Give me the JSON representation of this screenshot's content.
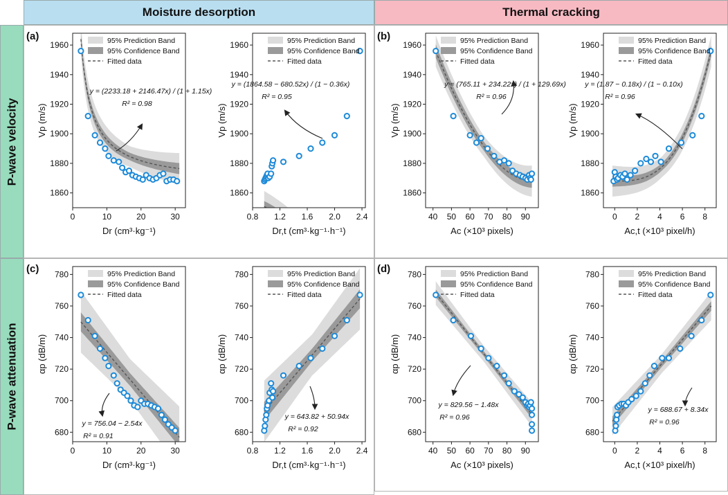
{
  "headers": {
    "col_left": "Moisture desorption",
    "col_right": "Thermal cracking",
    "row_top": "P-wave velocity",
    "row_bottom": "P-wave attenuation"
  },
  "colors": {
    "col_left_bg": "#b9def0",
    "col_right_bg": "#f7b9c2",
    "row_bg": "#98dcbd",
    "marker": "#1d8ad8",
    "prediction_band": "#dcdcdc",
    "confidence_band": "#9a9a9a",
    "fit_line": "#555555"
  },
  "legend": {
    "prediction": "95% Prediction Band",
    "confidence": "95% Confidence Band",
    "fitted": "Fitted data"
  },
  "panel_labels": [
    "(a)",
    "(b)",
    "(c)",
    "(d)"
  ],
  "chart_data": [
    {
      "id": "a1",
      "type": "scatter",
      "ylabel": "V_p (m/s)",
      "xlabel": "D_r (cm³·kg⁻¹)",
      "xlim": [
        0,
        33
      ],
      "ylim": [
        1850,
        1968
      ],
      "xticks": [
        0,
        10,
        20,
        30
      ],
      "yticks": [
        1860,
        1880,
        1900,
        1920,
        1940,
        1960
      ],
      "fit": "rational",
      "fit_params": [
        2233.18,
        2146.47,
        1.15
      ],
      "fit_range": [
        2.4,
        31.2
      ],
      "pred_half": 7,
      "conf_half": 2.5,
      "equation": [
        "y = (2233.18 + 2146.47x) / (1 + 1.15x)",
        "R² = 0.98"
      ],
      "x": [
        2.4,
        4.5,
        6.5,
        8,
        9.5,
        10.5,
        12,
        13.5,
        14.5,
        15.5,
        16.5,
        17.5,
        18.5,
        19.5,
        20.5,
        21.5,
        22.5,
        23.5,
        24.5,
        25.5,
        26.5,
        27.5,
        28.5,
        29.5,
        30.5
      ],
      "y": [
        1956,
        1912,
        1899,
        1894,
        1890,
        1885,
        1882,
        1881,
        1877,
        1874,
        1875,
        1872,
        1871,
        1870,
        1869,
        1872,
        1870,
        1869,
        1870,
        1872,
        1873,
        1868,
        1869,
        1869,
        1868
      ]
    },
    {
      "id": "a2",
      "type": "scatter",
      "ylabel": "V_p (m/s)",
      "xlabel": "D_r,t (cm³·kg⁻¹·h⁻¹)",
      "xlim": [
        0.8,
        2.45
      ],
      "ylim": [
        1850,
        1968
      ],
      "xticks": [
        0.8,
        1.2,
        1.6,
        2.0,
        2.4
      ],
      "yticks": [
        1860,
        1880,
        1900,
        1920,
        1940,
        1960
      ],
      "fit": "rational",
      "fit_params": [
        1864.58,
        -680.52,
        -0.36
      ],
      "fit_range": [
        0.97,
        2.37
      ],
      "pred_half": 7,
      "conf_half": 2.5,
      "equation": [
        "y = (1864.58 − 680.52x) / (1 − 0.36x)",
        "R² = 0.95"
      ],
      "x": [
        0.97,
        0.98,
        0.99,
        1.0,
        1.01,
        1.02,
        1.03,
        1.05,
        1.07,
        1.08,
        1.09,
        1.1,
        1.25,
        1.48,
        1.65,
        1.82,
        2.0,
        2.18,
        2.37
      ],
      "y": [
        1868,
        1869,
        1870,
        1871,
        1872,
        1873,
        1870,
        1871,
        1873,
        1878,
        1880,
        1882,
        1881,
        1885,
        1890,
        1894,
        1899,
        1912,
        1956
      ]
    },
    {
      "id": "b1",
      "type": "scatter",
      "ylabel": "V_p (m/s)",
      "xlabel": "A_c (×10³ pixels)",
      "xlim": [
        36,
        97
      ],
      "ylim": [
        1850,
        1968
      ],
      "xticks": [
        40,
        50,
        60,
        70,
        80,
        90
      ],
      "yticks": [
        1860,
        1880,
        1900,
        1920,
        1940,
        1960
      ],
      "fit": "rational",
      "fit_params": [
        765.11,
        234.22,
        129.69
      ],
      "fit_range": [
        41.5,
        93.5
      ],
      "pred_half": 7,
      "conf_half": 3,
      "equation": [
        "y = (765.11 + 234.22x) / (1 + 129.69x)",
        "R² = 0.96"
      ],
      "x": [
        41.5,
        51,
        60,
        63.5,
        66,
        69.5,
        73,
        76,
        78.5,
        81,
        83,
        85,
        87,
        88.5,
        90,
        91,
        92,
        92.5,
        93,
        93.5
      ],
      "y": [
        1956,
        1912,
        1899,
        1894,
        1897,
        1890,
        1885,
        1881,
        1882,
        1880,
        1875,
        1873,
        1872,
        1871,
        1870,
        1869,
        1872,
        1870,
        1869,
        1873
      ]
    },
    {
      "id": "b2",
      "type": "scatter",
      "ylabel": "V_p (m/s)",
      "xlabel": "A_c,t (×10³ pixel/h)",
      "xlim": [
        -1,
        9
      ],
      "ylim": [
        1850,
        1968
      ],
      "xticks": [
        0,
        2,
        4,
        6,
        8
      ],
      "yticks": [
        1860,
        1880,
        1900,
        1920,
        1940,
        1960
      ],
      "fit": "rational",
      "fit_params": [
        1.87,
        -0.18,
        -0.1
      ],
      "fit_range": [
        -0.2,
        8.55
      ],
      "pred_half": 7,
      "conf_half": 2.5,
      "equation": [
        "y = (1.87 − 0.18x) / (1 − 0.10x)",
        "R² = 0.96"
      ],
      "x": [
        -0.1,
        0.0,
        0.1,
        0.2,
        0.3,
        0.5,
        0.7,
        0.9,
        1.1,
        1.4,
        1.8,
        2.3,
        2.8,
        3.2,
        3.6,
        4.1,
        4.8,
        5.9,
        6.9,
        7.7,
        8.5
      ],
      "y": [
        1868,
        1874,
        1871,
        1869,
        1870,
        1872,
        1871,
        1873,
        1869,
        1872,
        1875,
        1880,
        1883,
        1881,
        1885,
        1881,
        1890,
        1894,
        1899,
        1912,
        1956
      ]
    },
    {
      "id": "c1",
      "type": "scatter",
      "ylabel": "α_p (dB/m)",
      "xlabel": "D_r (cm³·kg⁻¹)",
      "xlim": [
        0,
        33
      ],
      "ylim": [
        674,
        785
      ],
      "xticks": [
        0,
        10,
        20,
        30
      ],
      "yticks": [
        680,
        700,
        720,
        740,
        760,
        780
      ],
      "fit": "linear",
      "fit_params": [
        756.04,
        -2.54
      ],
      "fit_range": [
        2.4,
        31.2
      ],
      "pred_half": 13,
      "conf_half": 4,
      "equation": [
        "y = 756.04 − 2.54x",
        "R² = 0.91"
      ],
      "x": [
        2.4,
        4.5,
        6.5,
        8,
        9.5,
        10.5,
        12,
        13,
        14,
        15,
        16,
        17,
        18,
        19,
        20,
        21,
        22,
        23,
        24,
        25,
        26,
        27,
        28,
        29,
        30
      ],
      "y": [
        767,
        751,
        741,
        733,
        727,
        722,
        716,
        711,
        707,
        705,
        703,
        700,
        697,
        696,
        700,
        698,
        698,
        697,
        696,
        695,
        691,
        688,
        685,
        683,
        681
      ]
    },
    {
      "id": "c2",
      "type": "scatter",
      "ylabel": "α_p (dB/m)",
      "xlabel": "D_r,t (cm³·kg⁻¹·h⁻¹)",
      "xlim": [
        0.8,
        2.45
      ],
      "ylim": [
        674,
        785
      ],
      "xticks": [
        0.8,
        1.2,
        1.6,
        2.0,
        2.4
      ],
      "yticks": [
        680,
        700,
        720,
        740,
        760,
        780
      ],
      "fit": "linear",
      "fit_params": [
        643.82,
        50.94
      ],
      "fit_range": [
        0.97,
        2.37
      ],
      "pred_half": 13,
      "conf_half": 4,
      "equation": [
        "y = 643.82 + 50.94x",
        "R² = 0.92"
      ],
      "x": [
        0.97,
        0.98,
        0.99,
        1.0,
        1.01,
        1.02,
        1.04,
        1.05,
        1.07,
        1.08,
        1.09,
        1.1,
        1.25,
        1.48,
        1.65,
        1.82,
        2.0,
        2.18,
        2.37
      ],
      "y": [
        681,
        684,
        688,
        691,
        695,
        697,
        700,
        705,
        711,
        707,
        702,
        706,
        716,
        722,
        727,
        733,
        741,
        751,
        767
      ]
    },
    {
      "id": "d1",
      "type": "scatter",
      "ylabel": "α_p (dB/m)",
      "xlabel": "A_c (×10³ pixels)",
      "xlim": [
        36,
        97
      ],
      "ylim": [
        674,
        785
      ],
      "xticks": [
        40,
        50,
        60,
        70,
        80,
        90
      ],
      "yticks": [
        680,
        700,
        720,
        740,
        760,
        780
      ],
      "fit": "linear",
      "fit_params": [
        829.56,
        -1.48
      ],
      "fit_range": [
        41.5,
        93.5
      ],
      "pred_half": 5,
      "conf_half": 1.6,
      "equation": [
        "y = 829.56 − 1.48x",
        "R² = 0.96"
      ],
      "x": [
        41.5,
        51,
        60.5,
        66,
        70,
        74.5,
        78.5,
        81,
        84,
        86.5,
        88.5,
        90,
        91,
        91.5,
        92,
        92.5,
        93,
        93.5,
        93.5,
        93.5,
        93.5
      ],
      "y": [
        767,
        751,
        741,
        733,
        727,
        722,
        716,
        711,
        706,
        704,
        702,
        699,
        697,
        698,
        696,
        697,
        699,
        695,
        691,
        685,
        681
      ]
    },
    {
      "id": "d2",
      "type": "scatter",
      "ylabel": "α_p (dB/m)",
      "xlabel": "A_c,t (×10³ pixel/h)",
      "xlim": [
        -1,
        9
      ],
      "ylim": [
        674,
        785
      ],
      "xticks": [
        0,
        2,
        4,
        6,
        8
      ],
      "yticks": [
        680,
        700,
        720,
        740,
        760,
        780
      ],
      "fit": "linear",
      "fit_params": [
        688.67,
        8.34
      ],
      "fit_range": [
        -0.2,
        8.55
      ],
      "pred_half": 6,
      "conf_half": 2,
      "equation": [
        "y = 688.67 + 8.34x",
        "R² = 0.96"
      ],
      "x": [
        0.05,
        0.1,
        0.15,
        0.2,
        0.25,
        0.4,
        0.6,
        0.8,
        1.0,
        1.2,
        1.5,
        1.9,
        2.3,
        2.7,
        3.1,
        3.5,
        4.2,
        4.8,
        5.8,
        6.8,
        7.7,
        8.5
      ],
      "y": [
        681,
        684,
        688,
        691,
        696,
        697,
        698,
        698,
        697,
        699,
        701,
        703,
        706,
        711,
        716,
        722,
        727,
        727,
        733,
        741,
        751,
        767
      ]
    }
  ]
}
